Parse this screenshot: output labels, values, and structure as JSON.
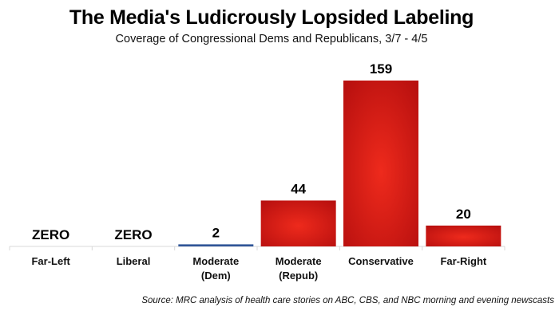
{
  "chart_data": {
    "type": "bar",
    "title": "The Media's Ludicrously Lopsided Labeling",
    "subtitle": "Coverage of Congressional Dems and Republicans, 3/7 - 4/5",
    "categories": [
      [
        "Far-Left"
      ],
      [
        "Liberal"
      ],
      [
        "Moderate",
        "(Dem)"
      ],
      [
        "Moderate",
        "(Repub)"
      ],
      [
        "Conservative"
      ],
      [
        "Far-Right"
      ]
    ],
    "values": [
      0,
      0,
      2,
      44,
      159,
      20
    ],
    "data_labels": [
      "ZERO",
      "ZERO",
      "2",
      "44",
      "159",
      "20"
    ],
    "bar_colors": [
      "#c8161a",
      "#c8161a",
      "#2f5597",
      "#d41c1a",
      "#c8161a",
      "#d41c1a"
    ],
    "xlabel": "",
    "ylabel": "",
    "ylim": [
      0,
      159
    ],
    "grid": false,
    "legend": "none",
    "source": "Source: MRC analysis of health care stories on ABC, CBS, and NBC morning and evening newscasts"
  }
}
